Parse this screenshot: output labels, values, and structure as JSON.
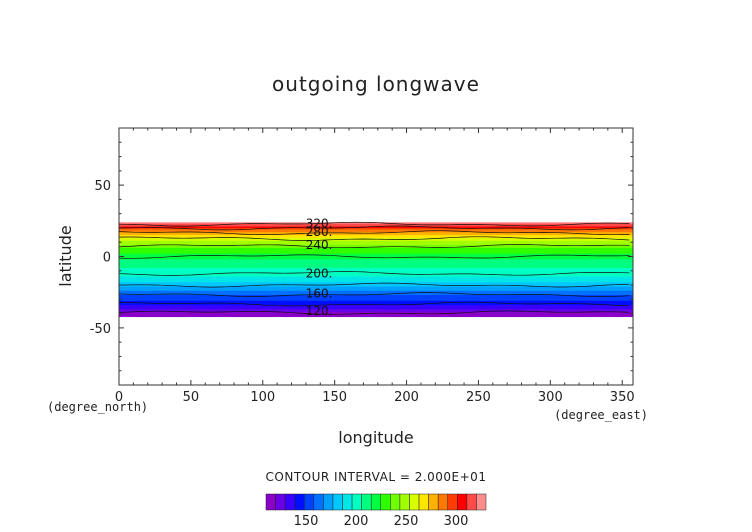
{
  "chart_data": {
    "type": "heatmap",
    "title": "outgoing longwave",
    "xlabel": "longitude",
    "ylabel": "latitude",
    "x_units": "(degree_east)",
    "y_units": "(degree_north)",
    "xlim": [
      0,
      357.5
    ],
    "ylim": [
      -90,
      90
    ],
    "x_ticks": [
      0,
      50,
      100,
      150,
      200,
      250,
      300,
      350
    ],
    "y_ticks": [
      -50,
      0,
      50
    ],
    "contour_interval_label": "CONTOUR INTERVAL = 2.000E+01",
    "data_lat_range": [
      -42,
      24
    ],
    "profile": {
      "lat": [
        24,
        20,
        15,
        10,
        5,
        0,
        -5,
        -10,
        -15,
        -20,
        -25,
        -30,
        -35,
        -38,
        -42
      ],
      "value": [
        330,
        300,
        270,
        250,
        232,
        220,
        210,
        203,
        195,
        180,
        165,
        150,
        135,
        125,
        110
      ]
    },
    "contour_labels": [
      {
        "text": "320.",
        "lon": 125,
        "lat": 23
      },
      {
        "text": "280.",
        "lon": 125,
        "lat": 17
      },
      {
        "text": "240.",
        "lon": 125,
        "lat": 8
      },
      {
        "text": "200.",
        "lon": 125,
        "lat": -12
      },
      {
        "text": "160.",
        "lon": 125,
        "lat": -26
      },
      {
        "text": "120.",
        "lon": 125,
        "lat": -38
      }
    ],
    "colorbar": {
      "min": 110,
      "max": 330,
      "ticks": [
        150,
        200,
        250,
        300
      ],
      "colors": [
        "#8B00C8",
        "#6A00E6",
        "#3A00FF",
        "#0010FF",
        "#0040FF",
        "#0070FF",
        "#00A0FF",
        "#00C8FF",
        "#00E6E6",
        "#00FFC0",
        "#00FF80",
        "#00FF40",
        "#30FF00",
        "#70FF00",
        "#A0FF00",
        "#D8FF00",
        "#FFE600",
        "#FFB000",
        "#FF7800",
        "#FF3C00",
        "#FF0000",
        "#FF4A4A",
        "#FF8C8C"
      ]
    }
  }
}
